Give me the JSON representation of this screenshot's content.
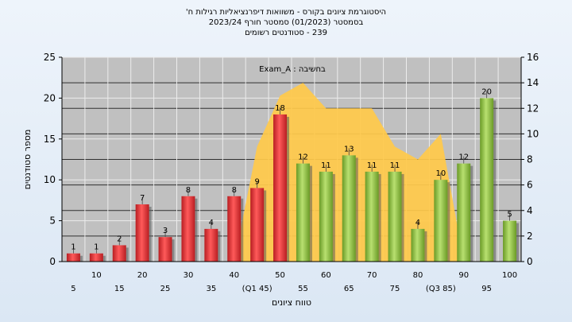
{
  "chart_data": {
    "type": "bar",
    "title_lines": [
      "היסטוגרמת ציונים בקורס - משוואות דיפרנציאליות רגילות ח'",
      "בסמסטר  (01/2023)  סמסטר חורף  2023/24",
      "239 - סטודנטים רשומים"
    ],
    "legend": "Exam_A : בחשיבה",
    "xlabel": "טווח ציונים",
    "ylabel": "מספר סטודנטים",
    "ylim": [
      0,
      25
    ],
    "y_ticks": [
      0,
      5,
      10,
      15,
      20,
      25
    ],
    "y2lim": [
      0,
      16
    ],
    "y2_ticks": [
      0,
      2,
      4,
      6,
      8,
      10,
      12,
      14,
      16
    ],
    "categories": [
      "5",
      "10",
      "15",
      "20",
      "25",
      "30",
      "35",
      "40",
      "(Q1 45)",
      "50",
      "55",
      "60",
      "65",
      "70",
      "75",
      "80",
      "(Q3 85)",
      "90",
      "95",
      "100"
    ],
    "values": [
      1,
      1,
      2,
      7,
      3,
      8,
      4,
      8,
      9,
      18,
      12,
      11,
      13,
      11,
      11,
      4,
      10,
      12,
      20,
      5
    ],
    "bar_colors": [
      "red",
      "red",
      "red",
      "red",
      "red",
      "red",
      "red",
      "red",
      "red",
      "red",
      "green",
      "green",
      "green",
      "green",
      "green",
      "green",
      "green",
      "green",
      "green",
      "green"
    ],
    "area_series_right_axis": [
      0,
      0,
      0,
      0,
      0,
      0,
      0,
      0,
      9,
      13,
      14,
      12,
      12,
      12,
      9,
      8,
      10,
      0,
      0,
      0
    ],
    "colors": {
      "red": "#e8383a",
      "green": "#8fc23f",
      "area": "#ffc94a",
      "plot_bg": "#c0c0c0"
    }
  }
}
